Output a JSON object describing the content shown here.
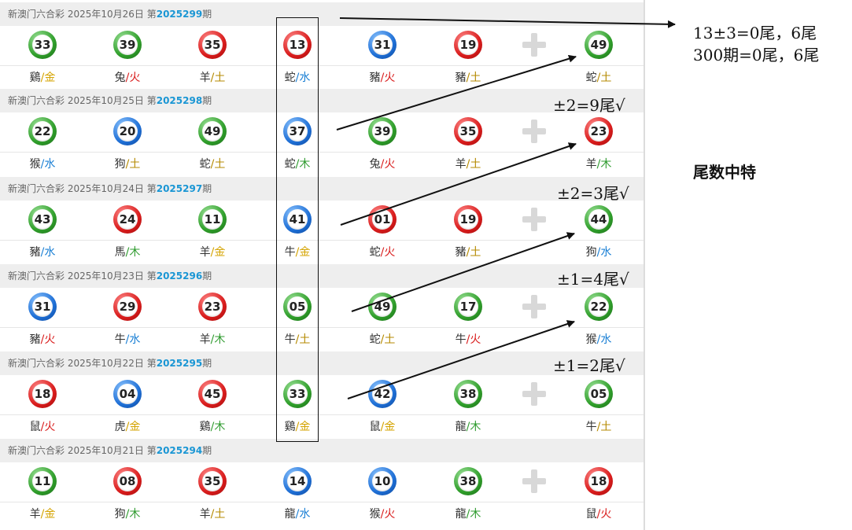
{
  "draws": [
    {
      "header": {
        "prefix": "新澳门六合彩 2025年10月26日 第",
        "period": "2025299",
        "suffix": "期"
      },
      "balls": [
        {
          "num": "33",
          "color": "green",
          "zodiac": "鷄",
          "element": "金"
        },
        {
          "num": "39",
          "color": "green",
          "zodiac": "兔",
          "element": "火"
        },
        {
          "num": "35",
          "color": "red",
          "zodiac": "羊",
          "element": "土"
        },
        {
          "num": "13",
          "color": "red",
          "zodiac": "蛇",
          "element": "水"
        },
        {
          "num": "31",
          "color": "blue",
          "zodiac": "豬",
          "element": "火"
        },
        {
          "num": "19",
          "color": "red",
          "zodiac": "豬",
          "element": "土"
        },
        {
          "num": "49",
          "color": "green",
          "zodiac": "蛇",
          "element": "土"
        }
      ]
    },
    {
      "header": {
        "prefix": "新澳门六合彩 2025年10月25日 第",
        "period": "2025298",
        "suffix": "期"
      },
      "balls": [
        {
          "num": "22",
          "color": "green",
          "zodiac": "猴",
          "element": "水"
        },
        {
          "num": "20",
          "color": "blue",
          "zodiac": "狗",
          "element": "土"
        },
        {
          "num": "49",
          "color": "green",
          "zodiac": "蛇",
          "element": "土"
        },
        {
          "num": "37",
          "color": "blue",
          "zodiac": "蛇",
          "element": "木"
        },
        {
          "num": "39",
          "color": "green",
          "zodiac": "兔",
          "element": "火"
        },
        {
          "num": "35",
          "color": "red",
          "zodiac": "羊",
          "element": "土"
        },
        {
          "num": "23",
          "color": "red",
          "zodiac": "羊",
          "element": "木"
        }
      ]
    },
    {
      "header": {
        "prefix": "新澳门六合彩 2025年10月24日 第",
        "period": "2025297",
        "suffix": "期"
      },
      "balls": [
        {
          "num": "43",
          "color": "green",
          "zodiac": "豬",
          "element": "水"
        },
        {
          "num": "24",
          "color": "red",
          "zodiac": "馬",
          "element": "木"
        },
        {
          "num": "11",
          "color": "green",
          "zodiac": "羊",
          "element": "金"
        },
        {
          "num": "41",
          "color": "blue",
          "zodiac": "牛",
          "element": "金"
        },
        {
          "num": "01",
          "color": "red",
          "zodiac": "蛇",
          "element": "火"
        },
        {
          "num": "19",
          "color": "red",
          "zodiac": "豬",
          "element": "土"
        },
        {
          "num": "44",
          "color": "green",
          "zodiac": "狗",
          "element": "水"
        }
      ]
    },
    {
      "header": {
        "prefix": "新澳门六合彩 2025年10月23日 第",
        "period": "2025296",
        "suffix": "期"
      },
      "balls": [
        {
          "num": "31",
          "color": "blue",
          "zodiac": "豬",
          "element": "火"
        },
        {
          "num": "29",
          "color": "red",
          "zodiac": "牛",
          "element": "水"
        },
        {
          "num": "23",
          "color": "red",
          "zodiac": "羊",
          "element": "木"
        },
        {
          "num": "05",
          "color": "green",
          "zodiac": "牛",
          "element": "土"
        },
        {
          "num": "49",
          "color": "green",
          "zodiac": "蛇",
          "element": "土"
        },
        {
          "num": "17",
          "color": "green",
          "zodiac": "牛",
          "element": "火"
        },
        {
          "num": "22",
          "color": "green",
          "zodiac": "猴",
          "element": "水"
        }
      ]
    },
    {
      "header": {
        "prefix": "新澳门六合彩 2025年10月22日 第",
        "period": "2025295",
        "suffix": "期"
      },
      "balls": [
        {
          "num": "18",
          "color": "red",
          "zodiac": "鼠",
          "element": "火"
        },
        {
          "num": "04",
          "color": "blue",
          "zodiac": "虎",
          "element": "金"
        },
        {
          "num": "45",
          "color": "red",
          "zodiac": "鷄",
          "element": "木"
        },
        {
          "num": "33",
          "color": "green",
          "zodiac": "鷄",
          "element": "金"
        },
        {
          "num": "42",
          "color": "blue",
          "zodiac": "鼠",
          "element": "金"
        },
        {
          "num": "38",
          "color": "green",
          "zodiac": "龍",
          "element": "木"
        },
        {
          "num": "05",
          "color": "green",
          "zodiac": "牛",
          "element": "土"
        }
      ]
    },
    {
      "header": {
        "prefix": "新澳门六合彩 2025年10月21日 第",
        "period": "2025294",
        "suffix": "期"
      },
      "balls": [
        {
          "num": "11",
          "color": "green",
          "zodiac": "羊",
          "element": "金"
        },
        {
          "num": "08",
          "color": "red",
          "zodiac": "狗",
          "element": "木"
        },
        {
          "num": "35",
          "color": "red",
          "zodiac": "羊",
          "element": "土"
        },
        {
          "num": "14",
          "color": "blue",
          "zodiac": "龍",
          "element": "水"
        },
        {
          "num": "10",
          "color": "blue",
          "zodiac": "猴",
          "element": "火"
        },
        {
          "num": "38",
          "color": "green",
          "zodiac": "龍",
          "element": "木"
        },
        {
          "num": "18",
          "color": "red",
          "zodiac": "鼠",
          "element": "火"
        }
      ]
    }
  ],
  "element_colors": {
    "金": "#d4a300",
    "木": "#2e9b2e",
    "水": "#1a7fd4",
    "火": "#d91c1c",
    "土": "#b58a00"
  },
  "annotations": {
    "note_line1": "13±3=0尾，6尾",
    "note_line2": "300期=0尾，6尾",
    "side_note": "尾数中特",
    "row_notes": [
      "±2=9尾√",
      "±2=3尾√",
      "±1=4尾√",
      "±1=2尾√"
    ]
  },
  "icons": {
    "plus": "plus-icon",
    "arrow": "arrow-icon"
  }
}
